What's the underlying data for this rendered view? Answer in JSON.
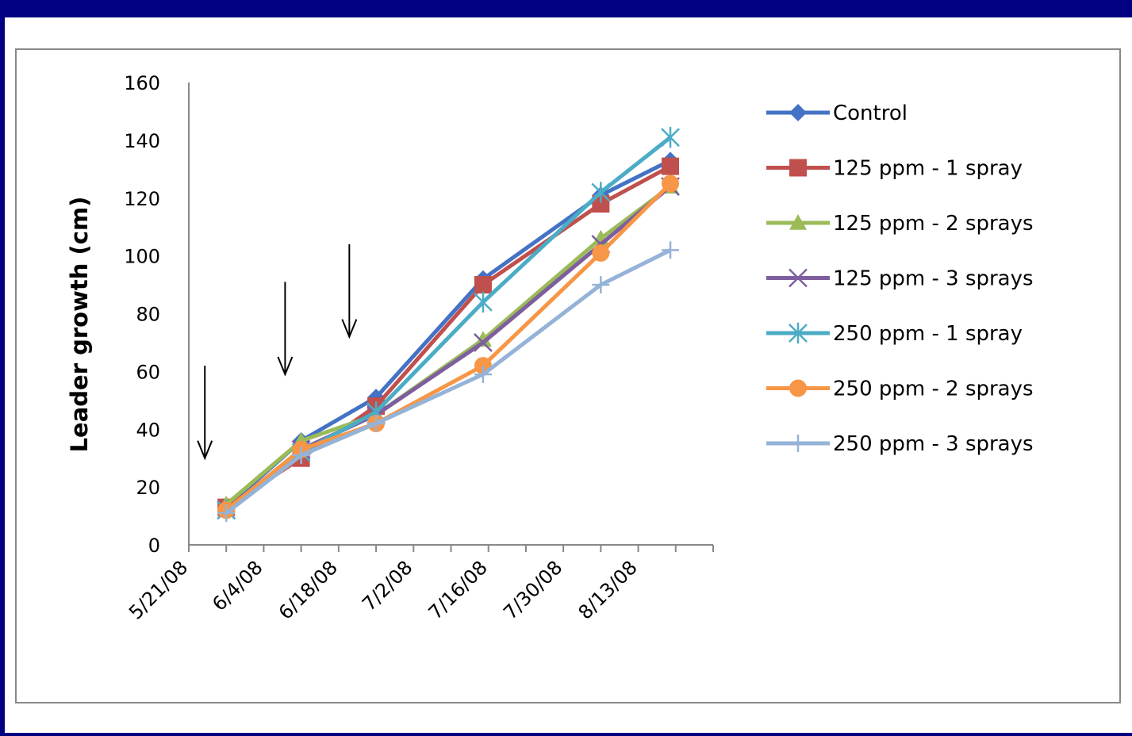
{
  "chart_data": {
    "type": "line",
    "xlabel": "",
    "ylabel": "Leader growth (cm)",
    "x_axis": {
      "type": "date",
      "min": "5/21/08",
      "max": "8/27/08",
      "tick_labels": [
        "5/21/08",
        "6/4/08",
        "6/18/08",
        "7/2/08",
        "7/16/08",
        "7/30/08",
        "8/13/08"
      ]
    },
    "y_axis": {
      "min": 0,
      "max": 160,
      "step": 20,
      "tick_labels": [
        "0",
        "20",
        "40",
        "60",
        "80",
        "100",
        "120",
        "140",
        "160"
      ]
    },
    "x": [
      "5/28/08",
      "6/11/08",
      "6/25/08",
      "7/15/08",
      "8/6/08",
      "8/19/08"
    ],
    "series": [
      {
        "name": "Control",
        "color": "#4472C4",
        "marker": "diamond",
        "values": [
          13,
          36,
          51,
          92,
          121,
          133
        ]
      },
      {
        "name": "125 ppm - 1 spray",
        "color": "#C0504D",
        "marker": "square",
        "values": [
          13,
          30,
          48,
          90,
          118,
          131
        ]
      },
      {
        "name": "125 ppm - 2 sprays",
        "color": "#9BBB59",
        "marker": "triangle",
        "values": [
          14,
          36,
          45,
          71,
          106,
          124
        ]
      },
      {
        "name": "125 ppm - 3 sprays",
        "color": "#7E5E9E",
        "marker": "x",
        "values": [
          12,
          33,
          45,
          70,
          104,
          124
        ]
      },
      {
        "name": "250 ppm - 1 spray",
        "color": "#4BACC6",
        "marker": "star",
        "values": [
          12,
          32,
          46,
          84,
          122,
          141
        ]
      },
      {
        "name": "250 ppm - 2 sprays",
        "color": "#F79646",
        "marker": "circle",
        "values": [
          12,
          33,
          42,
          62,
          101,
          125
        ]
      },
      {
        "name": "250 ppm - 3 sprays",
        "color": "#95B3D7",
        "marker": "plus",
        "values": [
          11,
          31,
          42,
          59,
          90,
          102
        ]
      }
    ],
    "annotations": [
      {
        "type": "arrow-down",
        "x": "5/24/08",
        "y_top": 62,
        "y_bottom": 30
      },
      {
        "type": "arrow-down",
        "x": "6/8/08",
        "y_top": 91,
        "y_bottom": 59
      },
      {
        "type": "arrow-down",
        "x": "6/20/08",
        "y_top": 104,
        "y_bottom": 72
      }
    ],
    "grid": false,
    "legend_position": "right"
  }
}
